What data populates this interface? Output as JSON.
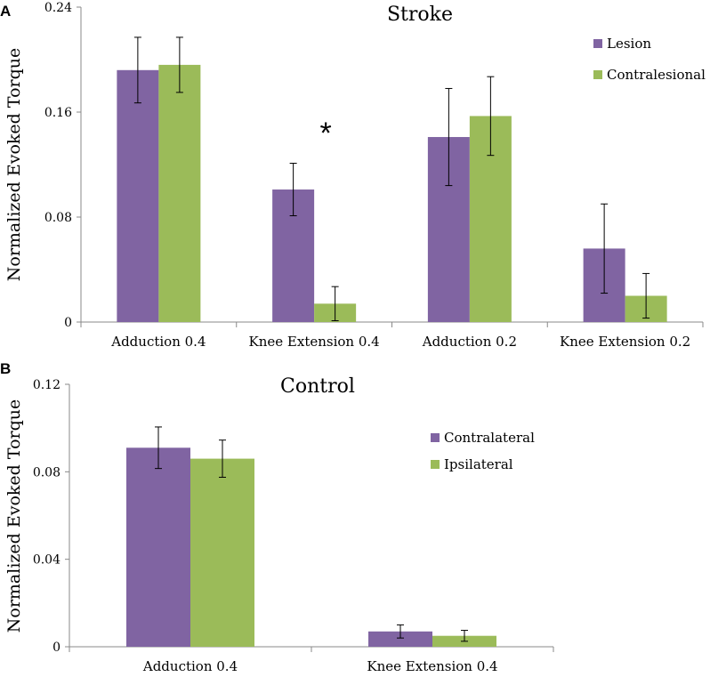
{
  "chart_data": [
    {
      "panel_label": "A",
      "type": "bar",
      "title": "Stroke",
      "ylabel": "Normalized Evoked Torque",
      "xlabel": "",
      "ylim": [
        0,
        0.24
      ],
      "yticks": [
        0,
        0.08,
        0.16,
        0.24
      ],
      "ytick_labels": [
        "0",
        "0.08",
        "0.16",
        "0.24"
      ],
      "categories": [
        "Adduction 0.4",
        "Knee Extension 0.4",
        "Adduction 0.2",
        "Knee Extension 0.2"
      ],
      "series": [
        {
          "name": "Lesion",
          "color": "#8064A2",
          "values": [
            0.192,
            0.101,
            0.141,
            0.056
          ],
          "errors": [
            0.025,
            0.02,
            0.037,
            0.034
          ]
        },
        {
          "name": "Contralesional",
          "color": "#9BBB59",
          "values": [
            0.196,
            0.014,
            0.157,
            0.02
          ],
          "errors": [
            0.021,
            0.013,
            0.03,
            0.017
          ]
        }
      ],
      "annotations": [
        {
          "text": "*",
          "category": "Knee Extension 0.4",
          "y": 0.147
        }
      ],
      "legend": "top-right",
      "grid": false
    },
    {
      "panel_label": "B",
      "type": "bar",
      "title": "Control",
      "ylabel": "Normalized Evoked Torque",
      "xlabel": "",
      "ylim": [
        0,
        0.12
      ],
      "yticks": [
        0,
        0.04,
        0.08,
        0.12
      ],
      "ytick_labels": [
        "0",
        "0.04",
        "0.08",
        "0.12"
      ],
      "categories": [
        "Adduction 0.4",
        "Knee Extension 0.4"
      ],
      "series": [
        {
          "name": "Contralateral",
          "color": "#8064A2",
          "values": [
            0.091,
            0.007
          ],
          "errors": [
            0.0095,
            0.003
          ]
        },
        {
          "name": "Ipsilateral",
          "color": "#9BBB59",
          "values": [
            0.086,
            0.005
          ],
          "errors": [
            0.0085,
            0.0025
          ]
        }
      ],
      "annotations": [],
      "legend": "center-right",
      "grid": false
    }
  ]
}
